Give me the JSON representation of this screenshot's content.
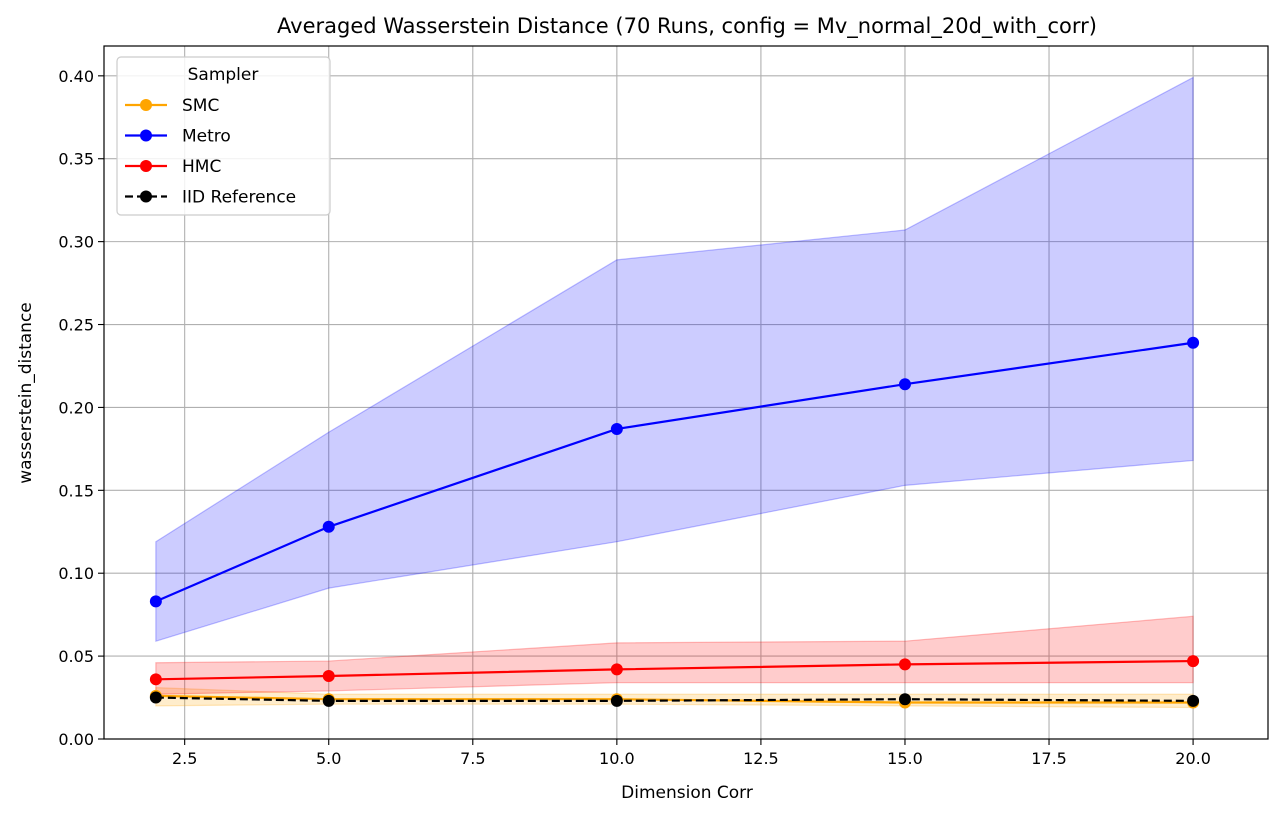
{
  "chart_data": {
    "type": "line",
    "title": "Averaged Wasserstein Distance (70 Runs, config = Mv_normal_20d_with_corr)",
    "xlabel": "Dimension Corr",
    "ylabel": "wasserstein_distance",
    "xlim": [
      1.1,
      21.3
    ],
    "ylim": [
      0.0,
      0.418
    ],
    "xticks": [
      2.5,
      5.0,
      7.5,
      10.0,
      12.5,
      15.0,
      17.5,
      20.0
    ],
    "xtick_labels": [
      "2.5",
      "5.0",
      "7.5",
      "10.0",
      "12.5",
      "15.0",
      "17.5",
      "20.0"
    ],
    "yticks": [
      0.0,
      0.05,
      0.1,
      0.15,
      0.2,
      0.25,
      0.3,
      0.35,
      0.4
    ],
    "ytick_labels": [
      "0.00",
      "0.05",
      "0.10",
      "0.15",
      "0.20",
      "0.25",
      "0.30",
      "0.35",
      "0.40"
    ],
    "grid": true,
    "legend": {
      "title": "Sampler",
      "placement": "top-left"
    },
    "x": [
      2,
      5,
      10,
      15,
      20
    ],
    "series": [
      {
        "name": "SMC",
        "color": "#ffa500",
        "dashed": false,
        "values": [
          0.026,
          0.024,
          0.024,
          0.022,
          0.022
        ],
        "band_low": [
          0.02,
          0.021,
          0.021,
          0.02,
          0.019
        ],
        "band_high": [
          0.031,
          0.027,
          0.027,
          0.027,
          0.027
        ]
      },
      {
        "name": "Metro",
        "color": "#0000ff",
        "dashed": false,
        "values": [
          0.083,
          0.128,
          0.187,
          0.214,
          0.239
        ],
        "band_low": [
          0.059,
          0.091,
          0.119,
          0.153,
          0.168
        ],
        "band_high": [
          0.119,
          0.185,
          0.289,
          0.307,
          0.399
        ]
      },
      {
        "name": "HMC",
        "color": "#ff0000",
        "dashed": false,
        "values": [
          0.036,
          0.038,
          0.042,
          0.045,
          0.047
        ],
        "band_low": [
          0.027,
          0.029,
          0.034,
          0.034,
          0.034
        ],
        "band_high": [
          0.046,
          0.047,
          0.058,
          0.059,
          0.074
        ]
      },
      {
        "name": "IID Reference",
        "color": "#000000",
        "dashed": true,
        "values": [
          0.025,
          0.023,
          0.023,
          0.024,
          0.023
        ]
      }
    ]
  }
}
